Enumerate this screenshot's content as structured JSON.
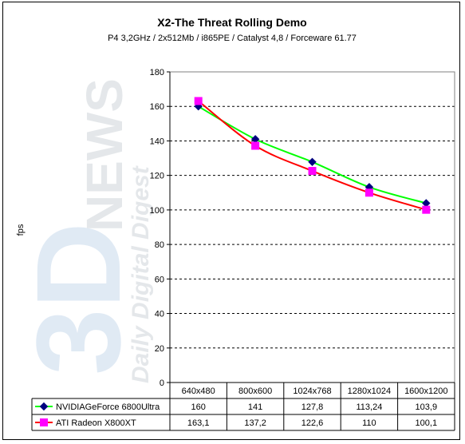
{
  "chart_data": {
    "type": "line",
    "title": "X2-The Threat Rolling Demo",
    "subtitle": "P4 3,2GHz / 2x512Mb / i865PE / Catalyst 4,8 / Forceware 61.77",
    "ylabel": "fps",
    "ylim": [
      0,
      180
    ],
    "yticks": [
      0,
      20,
      40,
      60,
      80,
      100,
      120,
      140,
      160,
      180
    ],
    "grid": true,
    "categories": [
      "640x480",
      "800x600",
      "1024x768",
      "1280x1024",
      "1600x1200"
    ],
    "series": [
      {
        "name": "NVIDIAGeForce 6800Ultra",
        "color": "#00ff00",
        "marker_color": "#000080",
        "marker": "diamond",
        "values": [
          160,
          141,
          127.8,
          113.24,
          103.9
        ],
        "labels": [
          "160",
          "141",
          "127,8",
          "113,24",
          "103,9"
        ]
      },
      {
        "name": "ATI Radeon X800XT",
        "color": "#ff0000",
        "marker_color": "#ff00ff",
        "marker": "square",
        "values": [
          163.1,
          137.2,
          122.6,
          110,
          100.1
        ],
        "labels": [
          "163,1",
          "137,2",
          "122,6",
          "110",
          "100,1"
        ]
      }
    ]
  },
  "watermark": {
    "logo": "3D",
    "word": "NEWS",
    "tagline": "Daily Digital Digest"
  }
}
